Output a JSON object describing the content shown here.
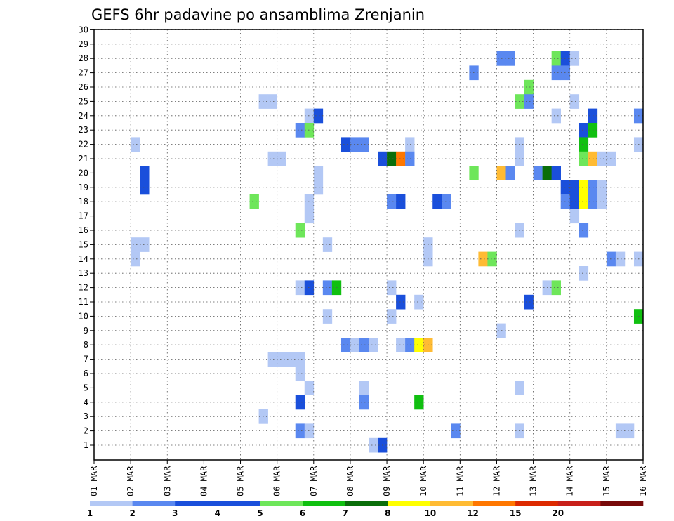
{
  "chart_data": {
    "type": "heatmap",
    "title": "GEFS 6hr padavine po ansamblima Zrenjanin",
    "x_tick_labels": [
      "01 MAR",
      "02 MAR",
      "03 MAR",
      "04 MAR",
      "05 MAR",
      "06 MAR",
      "07 MAR",
      "08 MAR",
      "09 MAR",
      "10 MAR",
      "11 MAR",
      "12 MAR",
      "13 MAR",
      "14 MAR",
      "15 MAR",
      "16 MAR"
    ],
    "y_tick_labels": [
      "1",
      "2",
      "3",
      "4",
      "5",
      "6",
      "7",
      "8",
      "9",
      "10",
      "11",
      "12",
      "13",
      "14",
      "15",
      "16",
      "17",
      "18",
      "19",
      "20",
      "21",
      "22",
      "23",
      "24",
      "25",
      "26",
      "27",
      "28",
      "29",
      "30"
    ],
    "ylim": [
      1,
      30
    ],
    "x_range_days": [
      1,
      16
    ],
    "grid": true,
    "colorbar": {
      "levels": [
        "1",
        "2",
        "3",
        "4",
        "5",
        "6",
        "7",
        "8",
        "10",
        "12",
        "15",
        "20"
      ],
      "colors": [
        "#b3c8f5",
        "#5a88f0",
        "#1a4fdb",
        "#1a4fdb",
        "#6ee65a",
        "#10c010",
        "#0a6e0a",
        "#ffff00",
        "#ffbb33",
        "#ff7700",
        "#dd2a00",
        "#c8201a",
        "#780a0a"
      ]
    },
    "cells": [
      {
        "member": 28,
        "day": 12.0,
        "cat": 2
      },
      {
        "member": 28,
        "day": 12.25,
        "cat": 2
      },
      {
        "member": 28,
        "day": 13.5,
        "cat": 5
      },
      {
        "member": 28,
        "day": 13.75,
        "cat": 3
      },
      {
        "member": 28,
        "day": 14.0,
        "cat": 1
      },
      {
        "member": 27,
        "day": 11.25,
        "cat": 2
      },
      {
        "member": 27,
        "day": 13.5,
        "cat": 2
      },
      {
        "member": 27,
        "day": 13.75,
        "cat": 2
      },
      {
        "member": 26,
        "day": 12.75,
        "cat": 5
      },
      {
        "member": 25,
        "day": 5.5,
        "cat": 1
      },
      {
        "member": 25,
        "day": 5.75,
        "cat": 1
      },
      {
        "member": 25,
        "day": 12.5,
        "cat": 5
      },
      {
        "member": 25,
        "day": 12.75,
        "cat": 2
      },
      {
        "member": 25,
        "day": 14.0,
        "cat": 1
      },
      {
        "member": 24,
        "day": 6.75,
        "cat": 1
      },
      {
        "member": 24,
        "day": 7.0,
        "cat": 3
      },
      {
        "member": 24,
        "day": 13.5,
        "cat": 1
      },
      {
        "member": 24,
        "day": 14.5,
        "cat": 3
      },
      {
        "member": 24,
        "day": 15.75,
        "cat": 2
      },
      {
        "member": 23,
        "day": 6.5,
        "cat": 2
      },
      {
        "member": 23,
        "day": 6.75,
        "cat": 5
      },
      {
        "member": 23,
        "day": 14.25,
        "cat": 3
      },
      {
        "member": 23,
        "day": 14.5,
        "cat": 6
      },
      {
        "member": 22,
        "day": 2.0,
        "cat": 1
      },
      {
        "member": 22,
        "day": 7.75,
        "cat": 3
      },
      {
        "member": 22,
        "day": 8.0,
        "cat": 2
      },
      {
        "member": 22,
        "day": 8.25,
        "cat": 2
      },
      {
        "member": 22,
        "day": 9.5,
        "cat": 1
      },
      {
        "member": 22,
        "day": 12.5,
        "cat": 1
      },
      {
        "member": 22,
        "day": 14.25,
        "cat": 6
      },
      {
        "member": 22,
        "day": 15.75,
        "cat": 1
      },
      {
        "member": 21,
        "day": 5.75,
        "cat": 1
      },
      {
        "member": 21,
        "day": 6.0,
        "cat": 1
      },
      {
        "member": 21,
        "day": 8.75,
        "cat": 3
      },
      {
        "member": 21,
        "day": 9.0,
        "cat": 7
      },
      {
        "member": 21,
        "day": 9.25,
        "cat": 10
      },
      {
        "member": 21,
        "day": 9.5,
        "cat": 2
      },
      {
        "member": 21,
        "day": 12.5,
        "cat": 1
      },
      {
        "member": 21,
        "day": 14.25,
        "cat": 5
      },
      {
        "member": 21,
        "day": 14.5,
        "cat": 9
      },
      {
        "member": 21,
        "day": 14.75,
        "cat": 1
      },
      {
        "member": 21,
        "day": 15.0,
        "cat": 1
      },
      {
        "member": 20,
        "day": 2.25,
        "cat": 3
      },
      {
        "member": 20,
        "day": 7.0,
        "cat": 1
      },
      {
        "member": 20,
        "day": 11.25,
        "cat": 5
      },
      {
        "member": 20,
        "day": 12.0,
        "cat": 9
      },
      {
        "member": 20,
        "day": 12.25,
        "cat": 2
      },
      {
        "member": 20,
        "day": 13.0,
        "cat": 2
      },
      {
        "member": 20,
        "day": 13.25,
        "cat": 7
      },
      {
        "member": 20,
        "day": 13.5,
        "cat": 3
      },
      {
        "member": 19,
        "day": 2.25,
        "cat": 3
      },
      {
        "member": 19,
        "day": 7.0,
        "cat": 1
      },
      {
        "member": 19,
        "day": 13.75,
        "cat": 3
      },
      {
        "member": 19,
        "day": 14.0,
        "cat": 3
      },
      {
        "member": 19,
        "day": 14.25,
        "cat": 8
      },
      {
        "member": 19,
        "day": 14.5,
        "cat": 2
      },
      {
        "member": 19,
        "day": 14.75,
        "cat": 1
      },
      {
        "member": 18,
        "day": 5.25,
        "cat": 5
      },
      {
        "member": 18,
        "day": 6.75,
        "cat": 1
      },
      {
        "member": 18,
        "day": 9.0,
        "cat": 2
      },
      {
        "member": 18,
        "day": 9.25,
        "cat": 3
      },
      {
        "member": 18,
        "day": 10.25,
        "cat": 3
      },
      {
        "member": 18,
        "day": 10.5,
        "cat": 2
      },
      {
        "member": 18,
        "day": 13.75,
        "cat": 2
      },
      {
        "member": 18,
        "day": 14.0,
        "cat": 3
      },
      {
        "member": 18,
        "day": 14.25,
        "cat": 8
      },
      {
        "member": 18,
        "day": 14.5,
        "cat": 2
      },
      {
        "member": 18,
        "day": 14.75,
        "cat": 1
      },
      {
        "member": 17,
        "day": 6.75,
        "cat": 1
      },
      {
        "member": 17,
        "day": 14.0,
        "cat": 1
      },
      {
        "member": 16,
        "day": 6.5,
        "cat": 5
      },
      {
        "member": 16,
        "day": 12.5,
        "cat": 1
      },
      {
        "member": 16,
        "day": 14.25,
        "cat": 2
      },
      {
        "member": 15,
        "day": 2.0,
        "cat": 1
      },
      {
        "member": 15,
        "day": 2.25,
        "cat": 1
      },
      {
        "member": 15,
        "day": 7.25,
        "cat": 1
      },
      {
        "member": 15,
        "day": 10.0,
        "cat": 1
      },
      {
        "member": 14,
        "day": 2.0,
        "cat": 1
      },
      {
        "member": 14,
        "day": 10.0,
        "cat": 1
      },
      {
        "member": 14,
        "day": 11.5,
        "cat": 9
      },
      {
        "member": 14,
        "day": 11.75,
        "cat": 5
      },
      {
        "member": 14,
        "day": 15.0,
        "cat": 2
      },
      {
        "member": 14,
        "day": 15.25,
        "cat": 1
      },
      {
        "member": 14,
        "day": 15.75,
        "cat": 1
      },
      {
        "member": 13,
        "day": 14.25,
        "cat": 1
      },
      {
        "member": 12,
        "day": 6.5,
        "cat": 1
      },
      {
        "member": 12,
        "day": 6.75,
        "cat": 3
      },
      {
        "member": 12,
        "day": 7.25,
        "cat": 2
      },
      {
        "member": 12,
        "day": 7.5,
        "cat": 6
      },
      {
        "member": 12,
        "day": 9.0,
        "cat": 1
      },
      {
        "member": 12,
        "day": 13.25,
        "cat": 1
      },
      {
        "member": 12,
        "day": 13.5,
        "cat": 5
      },
      {
        "member": 11,
        "day": 9.25,
        "cat": 3
      },
      {
        "member": 11,
        "day": 9.75,
        "cat": 1
      },
      {
        "member": 11,
        "day": 12.75,
        "cat": 3
      },
      {
        "member": 10,
        "day": 7.25,
        "cat": 1
      },
      {
        "member": 10,
        "day": 9.0,
        "cat": 1
      },
      {
        "member": 10,
        "day": 15.75,
        "cat": 6
      },
      {
        "member": 9,
        "day": 12.0,
        "cat": 1
      },
      {
        "member": 8,
        "day": 7.75,
        "cat": 2
      },
      {
        "member": 8,
        "day": 8.0,
        "cat": 1
      },
      {
        "member": 8,
        "day": 8.25,
        "cat": 2
      },
      {
        "member": 8,
        "day": 8.5,
        "cat": 1
      },
      {
        "member": 8,
        "day": 9.25,
        "cat": 1
      },
      {
        "member": 8,
        "day": 9.5,
        "cat": 2
      },
      {
        "member": 8,
        "day": 9.75,
        "cat": 8
      },
      {
        "member": 8,
        "day": 10.0,
        "cat": 9
      },
      {
        "member": 7,
        "day": 5.75,
        "cat": 1
      },
      {
        "member": 7,
        "day": 6.0,
        "cat": 1
      },
      {
        "member": 7,
        "day": 6.25,
        "cat": 1
      },
      {
        "member": 7,
        "day": 6.5,
        "cat": 1
      },
      {
        "member": 6,
        "day": 6.5,
        "cat": 1
      },
      {
        "member": 5,
        "day": 6.75,
        "cat": 1
      },
      {
        "member": 5,
        "day": 8.25,
        "cat": 1
      },
      {
        "member": 5,
        "day": 12.5,
        "cat": 1
      },
      {
        "member": 4,
        "day": 6.5,
        "cat": 3
      },
      {
        "member": 4,
        "day": 8.25,
        "cat": 2
      },
      {
        "member": 4,
        "day": 9.75,
        "cat": 6
      },
      {
        "member": 3,
        "day": 5.5,
        "cat": 1
      },
      {
        "member": 2,
        "day": 6.5,
        "cat": 2
      },
      {
        "member": 2,
        "day": 6.75,
        "cat": 1
      },
      {
        "member": 2,
        "day": 10.75,
        "cat": 2
      },
      {
        "member": 2,
        "day": 12.5,
        "cat": 1
      },
      {
        "member": 2,
        "day": 15.25,
        "cat": 1
      },
      {
        "member": 2,
        "day": 15.5,
        "cat": 1
      },
      {
        "member": 1,
        "day": 8.5,
        "cat": 1
      },
      {
        "member": 1,
        "day": 8.75,
        "cat": 3
      }
    ]
  }
}
